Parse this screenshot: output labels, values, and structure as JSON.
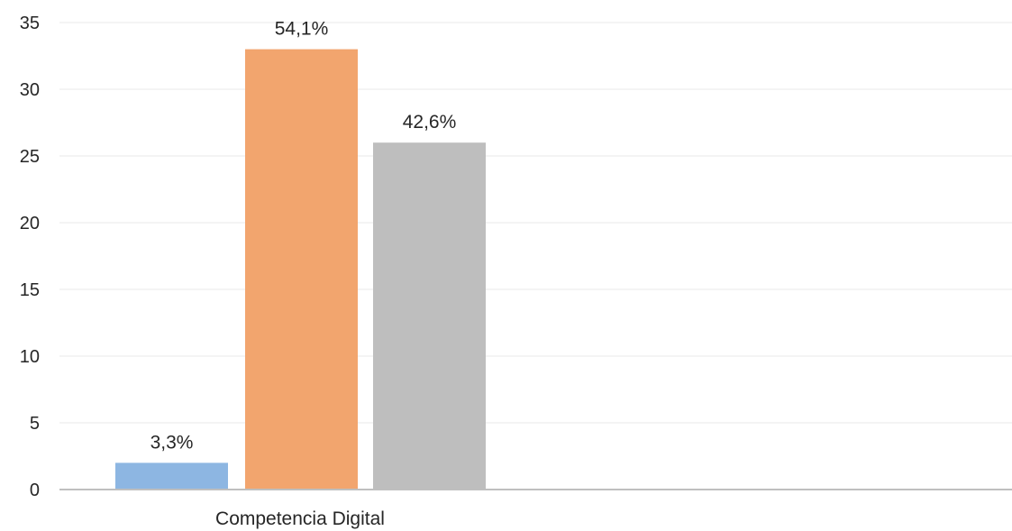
{
  "chart_data": {
    "type": "bar",
    "categories": [
      "Competencia Digital"
    ],
    "series": [
      {
        "values": [
          2
        ],
        "label": "3,3%",
        "color": "#8DB6E2"
      },
      {
        "values": [
          33
        ],
        "label": "54,1%",
        "color": "#F2A56E"
      },
      {
        "values": [
          26
        ],
        "label": "42,6%",
        "color": "#BEBEBE"
      }
    ],
    "ylim": [
      0,
      35
    ],
    "yticks": [
      0,
      5,
      10,
      15,
      20,
      25,
      30,
      35
    ],
    "grid": true,
    "colors": {
      "grid": "#EDEDED",
      "axis": "#BFBFBF",
      "text": "#262626"
    }
  }
}
